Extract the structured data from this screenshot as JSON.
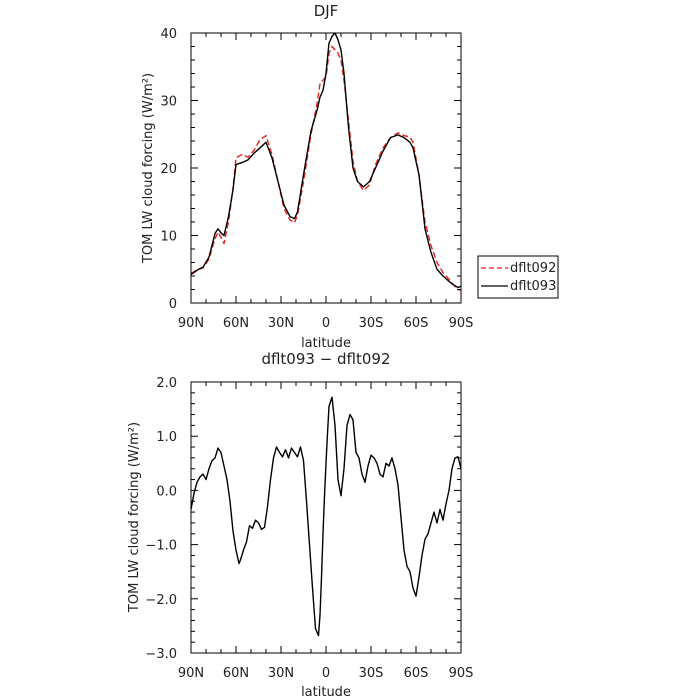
{
  "chart_data": [
    {
      "type": "line",
      "title": "DJF",
      "xlabel": "latitude",
      "ylabel": "TOM LW cloud forcing (W/m²)",
      "ylim": [
        0,
        40
      ],
      "yticks": [
        0,
        10,
        20,
        30,
        40
      ],
      "ytick_labels": [
        "0",
        "10",
        "20",
        "30",
        "40"
      ],
      "xlim": [
        90,
        -90
      ],
      "xticks": [
        90,
        60,
        30,
        0,
        -30,
        -60,
        -90
      ],
      "xtick_labels": [
        "90N",
        "60N",
        "30N",
        "0",
        "30S",
        "60S",
        "90S"
      ],
      "legend_position": "right",
      "series": [
        {
          "name": "dflt092",
          "color": "#e8221b",
          "dash": "dashed",
          "x": [
            90,
            85,
            82,
            78,
            74,
            72,
            70,
            68,
            65,
            62,
            60,
            56,
            52,
            48,
            44,
            40,
            36,
            32,
            28,
            24,
            21,
            19,
            15,
            10,
            6,
            4,
            2,
            0,
            -2,
            -4,
            -6,
            -8,
            -10,
            -12,
            -15,
            -18,
            -21,
            -25,
            -29,
            -33,
            -38,
            -43,
            -48,
            -52,
            -56,
            -58,
            -62,
            -66,
            -70,
            -74,
            -78,
            -82,
            -85,
            -88,
            -90
          ],
          "y": [
            4.4,
            5.0,
            5.2,
            6.5,
            9.5,
            10.5,
            9.7,
            8.8,
            12.0,
            17.0,
            21.5,
            22.0,
            21.6,
            22.6,
            24.2,
            24.8,
            22.0,
            18.0,
            14.0,
            12.3,
            11.9,
            13.0,
            18.0,
            25.0,
            29.5,
            32.5,
            33.0,
            33.5,
            37.0,
            38.0,
            37.5,
            37.0,
            36.0,
            33.0,
            27.0,
            21.0,
            18.0,
            16.7,
            17.5,
            20.5,
            23.0,
            24.5,
            25.2,
            24.8,
            24.6,
            23.8,
            19.0,
            12.0,
            8.5,
            6.0,
            4.5,
            3.5,
            2.7,
            2.0,
            1.9
          ]
        },
        {
          "name": "dflt093",
          "color": "#000000",
          "dash": "solid",
          "x": [
            90,
            85,
            82,
            78,
            74,
            72,
            70,
            68,
            65,
            62,
            60,
            56,
            52,
            48,
            44,
            40,
            36,
            32,
            28,
            24,
            21,
            19,
            15,
            10,
            6,
            4,
            2,
            0,
            -2,
            -4,
            -6,
            -8,
            -10,
            -12,
            -15,
            -18,
            -21,
            -25,
            -29,
            -33,
            -38,
            -43,
            -48,
            -52,
            -56,
            -58,
            -62,
            -66,
            -70,
            -74,
            -78,
            -82,
            -85,
            -88,
            -90
          ],
          "y": [
            4.2,
            5.0,
            5.3,
            6.8,
            10.3,
            11.0,
            10.4,
            10.0,
            12.8,
            16.8,
            20.5,
            20.8,
            21.2,
            22.2,
            23.0,
            23.8,
            21.5,
            18.0,
            14.5,
            12.8,
            12.5,
            13.5,
            19.0,
            25.5,
            28.5,
            30.5,
            31.5,
            34.0,
            38.5,
            39.5,
            40.0,
            39.0,
            37.5,
            34.0,
            26.0,
            20.0,
            18.0,
            17.2,
            18.0,
            20.0,
            22.5,
            24.5,
            24.9,
            24.5,
            23.8,
            23.0,
            19.0,
            11.0,
            7.5,
            5.0,
            4.0,
            3.2,
            2.7,
            2.3,
            2.5
          ]
        }
      ]
    },
    {
      "type": "line",
      "title": "dflt093 − dflt092",
      "xlabel": "latitude",
      "ylabel": "TOM LW cloud forcing (W/m²)",
      "ylim": [
        -3,
        2
      ],
      "yticks": [
        -3,
        -2,
        -1,
        0,
        1,
        2
      ],
      "ytick_labels": [
        "−3.0",
        "−2.0",
        "−1.0",
        "0.0",
        "1.0",
        "2.0"
      ],
      "xlim": [
        90,
        -90
      ],
      "xticks": [
        90,
        60,
        30,
        0,
        -30,
        -60,
        -90
      ],
      "xtick_labels": [
        "90N",
        "60N",
        "30N",
        "0",
        "30S",
        "60S",
        "90S"
      ],
      "series": [
        {
          "color": "#000000",
          "dash": "solid",
          "x": [
            90,
            88,
            86,
            84,
            82,
            80,
            78,
            76,
            74,
            72,
            70,
            68,
            66,
            64,
            62,
            60,
            58,
            57,
            55,
            53,
            51,
            49,
            47,
            45,
            43,
            41,
            39,
            37,
            35,
            33,
            31,
            29,
            27,
            25,
            23,
            21,
            19,
            17,
            15,
            13,
            11,
            9,
            7,
            5,
            4,
            3,
            2,
            1,
            0,
            -1,
            -2,
            -4,
            -6,
            -8,
            -10,
            -12,
            -14,
            -16,
            -18,
            -20,
            -22,
            -24,
            -26,
            -28,
            -30,
            -32,
            -34,
            -36,
            -38,
            -40,
            -42,
            -44,
            -46,
            -48,
            -50,
            -52,
            -54,
            -56,
            -58,
            -60,
            -62,
            -64,
            -66,
            -68,
            -70,
            -72,
            -74,
            -76,
            -78,
            -80,
            -82,
            -84,
            -86,
            -88,
            -90
          ],
          "y": [
            -0.35,
            -0.05,
            0.15,
            0.25,
            0.3,
            0.2,
            0.4,
            0.55,
            0.6,
            0.78,
            0.7,
            0.45,
            0.2,
            -0.2,
            -0.75,
            -1.1,
            -1.35,
            -1.28,
            -1.1,
            -0.95,
            -0.65,
            -0.7,
            -0.55,
            -0.6,
            -0.72,
            -0.68,
            -0.3,
            0.2,
            0.6,
            0.8,
            0.7,
            0.62,
            0.75,
            0.6,
            0.78,
            0.7,
            0.62,
            0.8,
            0.55,
            -0.2,
            -1.0,
            -1.8,
            -2.55,
            -2.68,
            -2.3,
            -1.6,
            -0.8,
            -0.1,
            0.5,
            1.05,
            1.55,
            1.72,
            1.2,
            0.2,
            -0.1,
            0.4,
            1.2,
            1.4,
            1.3,
            0.7,
            0.6,
            0.3,
            0.15,
            0.45,
            0.65,
            0.6,
            0.5,
            0.3,
            0.25,
            0.5,
            0.45,
            0.6,
            0.4,
            0.1,
            -0.5,
            -1.1,
            -1.4,
            -1.5,
            -1.8,
            -1.95,
            -1.6,
            -1.2,
            -0.9,
            -0.8,
            -0.6,
            -0.4,
            -0.6,
            -0.35,
            -0.55,
            -0.25,
            0.0,
            0.4,
            0.6,
            0.62,
            0.4
          ]
        }
      ]
    }
  ]
}
